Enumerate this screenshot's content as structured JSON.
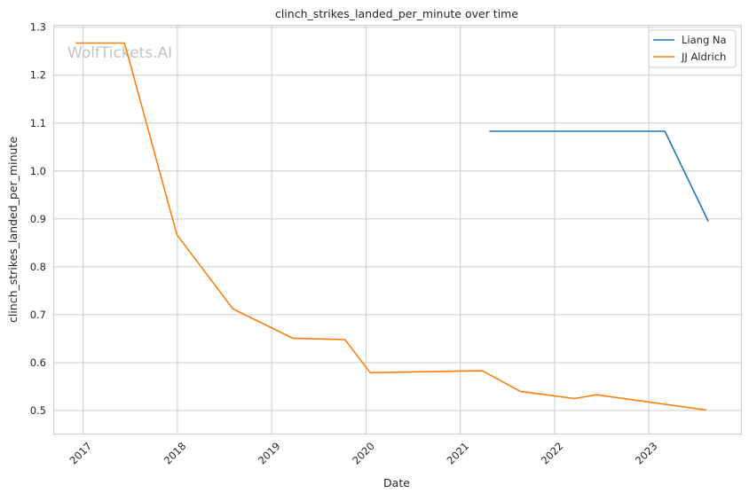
{
  "chart_data": {
    "type": "line",
    "title": "clinch_strikes_landed_per_minute over time",
    "xlabel": "Date",
    "ylabel": "clinch_strikes_landed_per_minute",
    "watermark": "WolfTickets.AI",
    "x_tick_labels": [
      "2017",
      "2018",
      "2019",
      "2020",
      "2021",
      "2022",
      "2023"
    ],
    "y_ticks": [
      0.5,
      0.6,
      0.7,
      0.8,
      0.9,
      1.0,
      1.1,
      1.2,
      1.3
    ],
    "y_tick_labels": [
      "0.5",
      "0.6",
      "0.7",
      "0.8",
      "0.9",
      "1.0",
      "1.1",
      "1.2",
      "1.3"
    ],
    "xlim": [
      "2016-09-07",
      "2023-12-24"
    ],
    "ylim": [
      0.45,
      1.305
    ],
    "grid": true,
    "legend_position": "top-right",
    "series": [
      {
        "name": "Liang Na",
        "color": "#1f77b4",
        "points": [
          {
            "x": "2021-04-23",
            "y": 1.083
          },
          {
            "x": "2023-03-04",
            "y": 1.083
          },
          {
            "x": "2023-08-19",
            "y": 0.895
          }
        ]
      },
      {
        "name": "JJ Aldrich",
        "color": "#ff7f0e",
        "points": [
          {
            "x": "2016-12-03",
            "y": 1.267
          },
          {
            "x": "2017-06-10",
            "y": 1.267
          },
          {
            "x": "2017-12-30",
            "y": 0.867
          },
          {
            "x": "2018-08-04",
            "y": 0.712
          },
          {
            "x": "2019-03-23",
            "y": 0.651
          },
          {
            "x": "2019-10-12",
            "y": 0.648
          },
          {
            "x": "2020-01-18",
            "y": 0.579
          },
          {
            "x": "2021-03-27",
            "y": 0.583
          },
          {
            "x": "2021-08-21",
            "y": 0.54
          },
          {
            "x": "2022-03-19",
            "y": 0.525
          },
          {
            "x": "2022-06-11",
            "y": 0.533
          },
          {
            "x": "2023-08-12",
            "y": 0.501
          }
        ]
      }
    ]
  }
}
